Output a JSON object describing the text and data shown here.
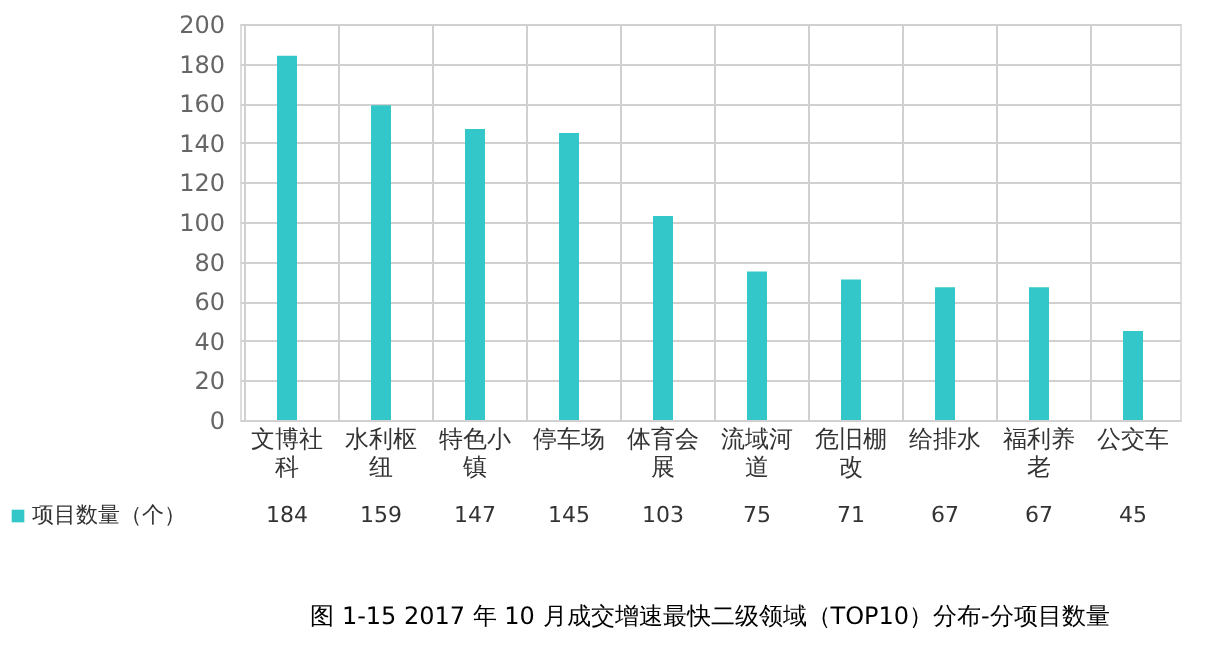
{
  "chart_data": {
    "type": "bar",
    "title": "图 1-15 2017 年 10 月成交增速最快二级领域（TOP10）分布-分项目数量",
    "categories": [
      "文博社科",
      "水利枢纽",
      "特色小镇",
      "停车场",
      "体育会展",
      "流域河道",
      "危旧棚改",
      "给排水",
      "福利养老",
      "公交车"
    ],
    "series": [
      {
        "name": "项目数量（个）",
        "color": "#33c7c9",
        "values": [
          184,
          159,
          147,
          145,
          103,
          75,
          71,
          67,
          67,
          45
        ]
      }
    ],
    "ylim": [
      0,
      200
    ],
    "yticks": [
      0,
      20,
      40,
      60,
      80,
      100,
      120,
      140,
      160,
      180,
      200
    ],
    "grid": true,
    "legend": "bottom",
    "data_labels": true
  }
}
